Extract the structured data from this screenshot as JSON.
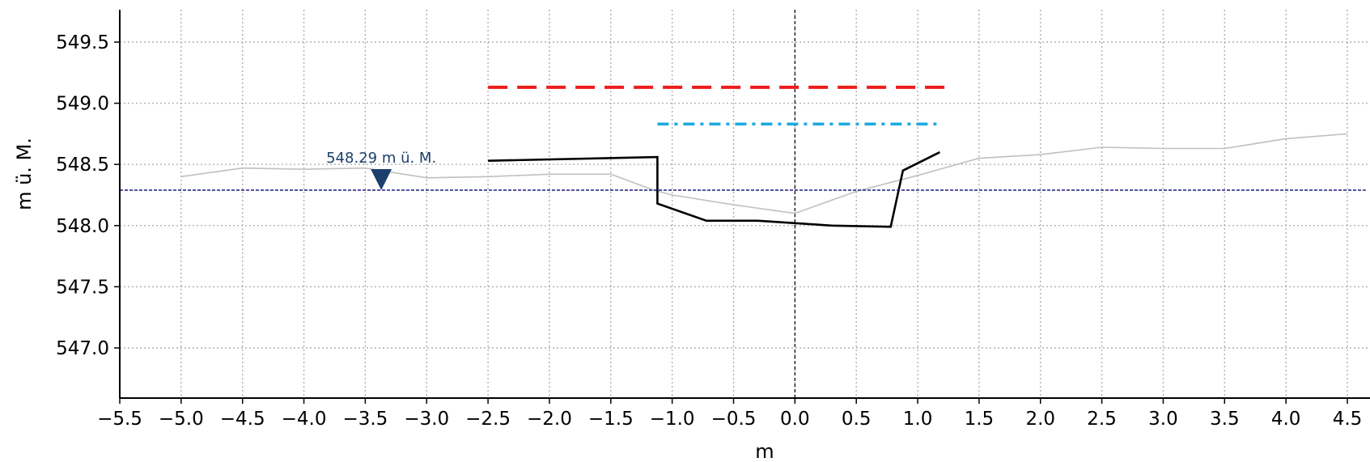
{
  "chart_data": {
    "type": "line",
    "xlabel": "m",
    "ylabel": "m ü. M.",
    "xlim": [
      -5.5,
      4.65
    ],
    "ylim": [
      546.6,
      549.75
    ],
    "x_ticks": [
      -5.5,
      -5.0,
      -4.5,
      -4.0,
      -3.5,
      -3.0,
      -2.5,
      -2.0,
      -1.5,
      -1.0,
      -0.5,
      0.0,
      0.5,
      1.0,
      1.5,
      2.0,
      2.5,
      3.0,
      3.5,
      4.0,
      4.5
    ],
    "x_tick_labels": [
      "−5.5",
      "−5.0",
      "−4.5",
      "−4.0",
      "−3.5",
      "−3.0",
      "−2.5",
      "−2.0",
      "−1.5",
      "−1.0",
      "−0.5",
      "0.0",
      "0.5",
      "1.0",
      "1.5",
      "2.0",
      "2.5",
      "3.0",
      "3.5",
      "4.0",
      "4.5"
    ],
    "y_ticks": [
      547.0,
      547.5,
      548.0,
      548.5,
      549.0,
      549.5
    ],
    "y_tick_labels": [
      "547.0",
      "547.5",
      "548.0",
      "548.5",
      "549.0",
      "549.5"
    ],
    "grid": true,
    "center_line_x": 0.0,
    "series": [
      {
        "style": "gray-solid",
        "color": "#c0c0c0",
        "x": [
          -5.0,
          -4.5,
          -4.0,
          -3.5,
          -3.0,
          -2.5,
          -2.0,
          -1.5,
          -1.15,
          -1.0,
          -0.5,
          0.0,
          0.5,
          1.0,
          1.5,
          2.0,
          2.5,
          3.0,
          3.5,
          4.0,
          4.5
        ],
        "y": [
          548.4,
          548.47,
          548.46,
          548.47,
          548.39,
          548.4,
          548.42,
          548.42,
          548.29,
          548.25,
          548.17,
          548.1,
          548.28,
          548.41,
          548.55,
          548.58,
          548.64,
          548.63,
          548.63,
          548.71,
          548.75
        ]
      },
      {
        "style": "black-solid",
        "color": "#000000",
        "x": [
          -2.5,
          -1.12,
          -1.12,
          -0.72,
          -0.3,
          0.3,
          0.78,
          0.88,
          1.18
        ],
        "y": [
          548.53,
          548.56,
          548.18,
          548.04,
          548.04,
          548.0,
          547.99,
          548.45,
          548.6
        ]
      },
      {
        "style": "red-dashed",
        "color": "#ee1c1c",
        "x": [
          -2.5,
          1.22
        ],
        "y": [
          549.13,
          549.13
        ]
      },
      {
        "style": "cyan-dashdot",
        "color": "#1eaadf",
        "x": [
          -1.12,
          1.18
        ],
        "y": [
          548.83,
          548.83
        ]
      },
      {
        "style": "navy-dashed",
        "color": "#1a1a80",
        "x": [
          -5.5,
          4.65
        ],
        "y": [
          548.29,
          548.29
        ]
      }
    ],
    "water_level": {
      "label": "548.29 m ü. M.",
      "value": 548.29,
      "marker_x": -3.37,
      "color": "#1c3f6e"
    }
  }
}
